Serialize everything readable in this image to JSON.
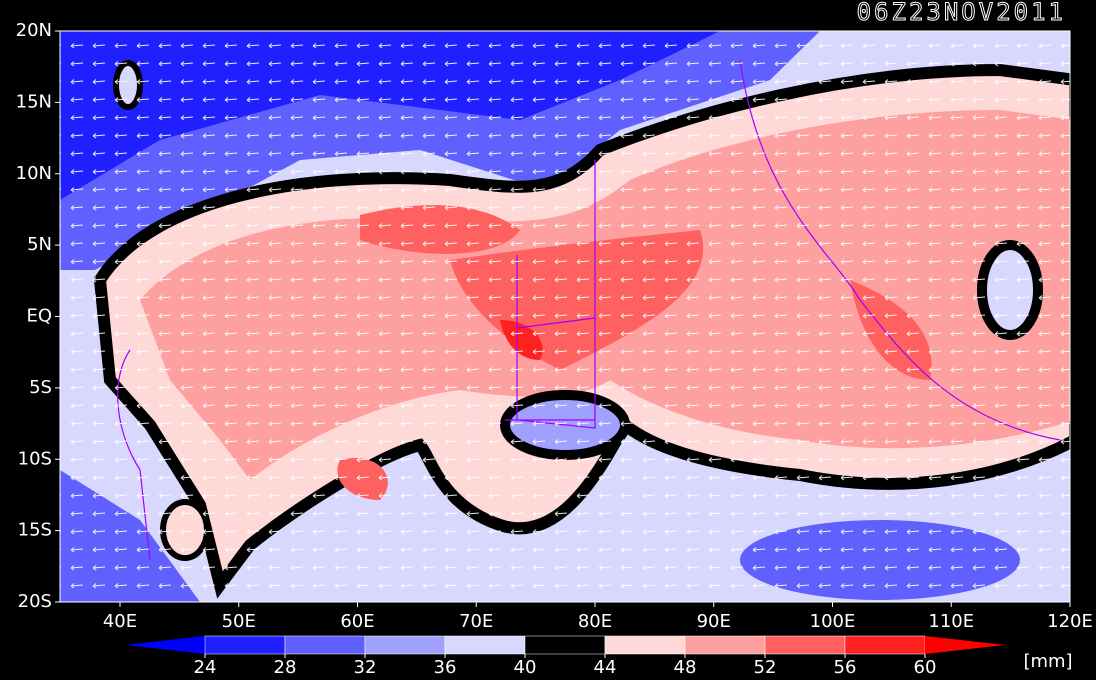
{
  "title": "06Z23NOV2011",
  "lat_labels": [
    "20N",
    "15N",
    "10N",
    "5N",
    "EQ",
    "5S",
    "10S",
    "15S",
    "20S"
  ],
  "lon_labels": [
    "40E",
    "50E",
    "60E",
    "70E",
    "80E",
    "90E",
    "100E",
    "110E",
    "120E"
  ],
  "colorbar": {
    "levels": [
      24,
      28,
      32,
      36,
      40,
      44,
      48,
      52,
      56,
      60
    ],
    "colors": [
      "#0000ff",
      "#2020ff",
      "#6060ff",
      "#a0a0ff",
      "#d8d8ff",
      "#000000",
      "#ffd8d8",
      "#ffa0a0",
      "#ff6060",
      "#ff2020",
      "#ff0000"
    ],
    "unit": "[mm]"
  }
}
